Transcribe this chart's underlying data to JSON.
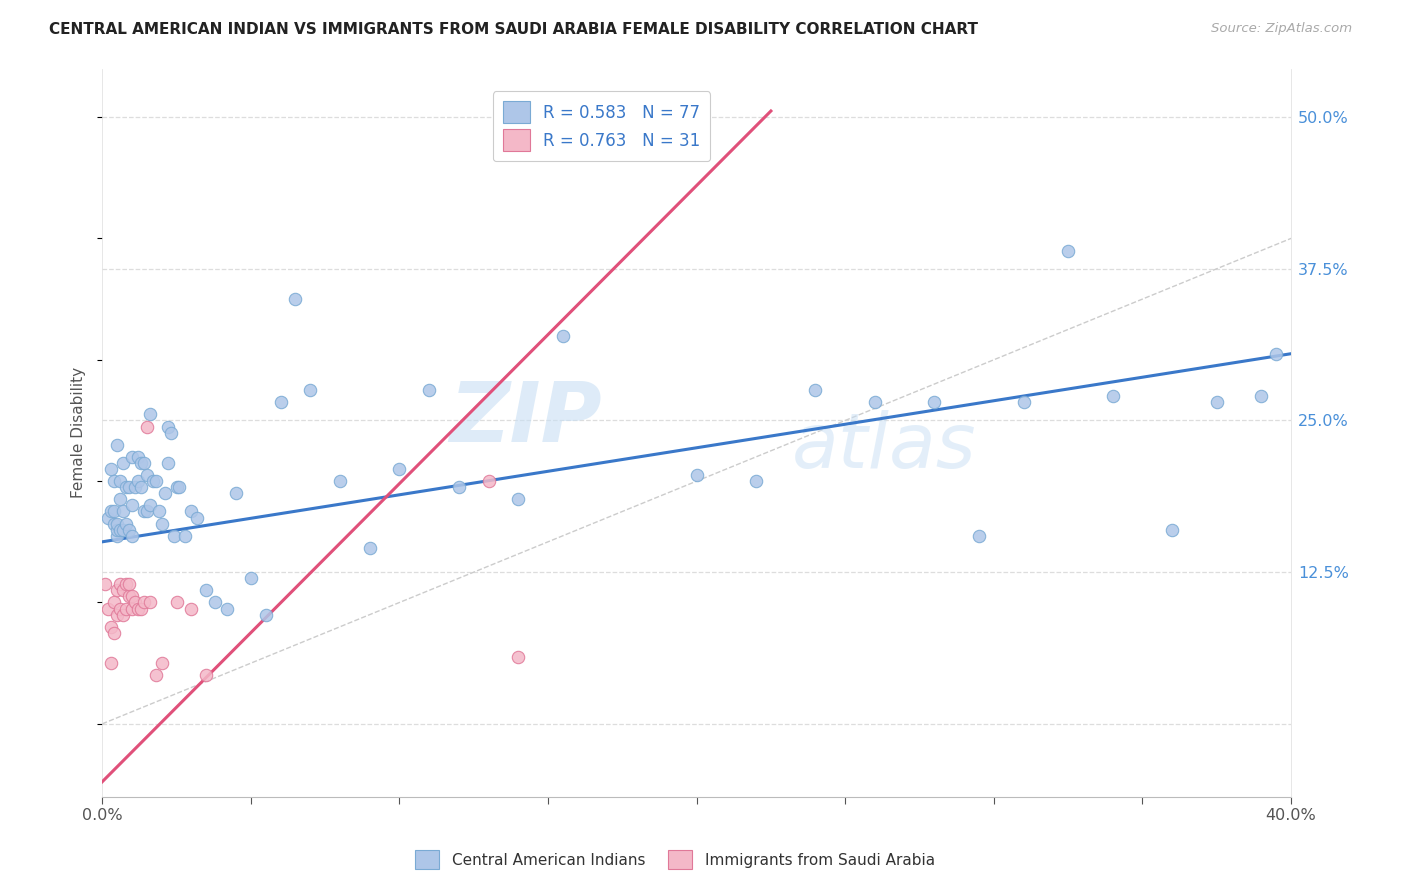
{
  "title": "CENTRAL AMERICAN INDIAN VS IMMIGRANTS FROM SAUDI ARABIA FEMALE DISABILITY CORRELATION CHART",
  "source": "Source: ZipAtlas.com",
  "ylabel": "Female Disability",
  "xlim": [
    0.0,
    0.4
  ],
  "ylim": [
    -0.06,
    0.54
  ],
  "yticks": [
    0.0,
    0.125,
    0.25,
    0.375,
    0.5
  ],
  "ytick_labels": [
    "",
    "12.5%",
    "25.0%",
    "37.5%",
    "50.0%"
  ],
  "xticks": [
    0.0,
    0.05,
    0.1,
    0.15,
    0.2,
    0.25,
    0.3,
    0.35,
    0.4
  ],
  "xtick_labels": [
    "0.0%",
    "",
    "",
    "",
    "",
    "",
    "",
    "",
    "40.0%"
  ],
  "series1_color": "#aec6e8",
  "series1_edge": "#7aaad4",
  "series2_color": "#f4b8c8",
  "series2_edge": "#e07898",
  "line1_color": "#3a78c9",
  "line2_color": "#e0507a",
  "ref_line_color": "#cccccc",
  "legend_R1": "R = 0.583",
  "legend_N1": "N = 77",
  "legend_R2": "R = 0.763",
  "legend_N2": "N = 31",
  "label1": "Central American Indians",
  "label2": "Immigrants from Saudi Arabia",
  "watermark_zip": "ZIP",
  "watermark_atlas": "atlas",
  "blue_points_x": [
    0.002,
    0.003,
    0.003,
    0.004,
    0.004,
    0.004,
    0.005,
    0.005,
    0.005,
    0.005,
    0.006,
    0.006,
    0.006,
    0.007,
    0.007,
    0.007,
    0.008,
    0.008,
    0.009,
    0.009,
    0.01,
    0.01,
    0.01,
    0.011,
    0.012,
    0.012,
    0.013,
    0.013,
    0.014,
    0.014,
    0.015,
    0.015,
    0.016,
    0.016,
    0.017,
    0.018,
    0.019,
    0.02,
    0.021,
    0.022,
    0.022,
    0.023,
    0.024,
    0.025,
    0.026,
    0.028,
    0.03,
    0.032,
    0.035,
    0.038,
    0.042,
    0.045,
    0.05,
    0.055,
    0.06,
    0.065,
    0.07,
    0.08,
    0.09,
    0.1,
    0.11,
    0.12,
    0.14,
    0.155,
    0.2,
    0.22,
    0.24,
    0.26,
    0.28,
    0.295,
    0.31,
    0.325,
    0.34,
    0.36,
    0.375,
    0.39,
    0.395
  ],
  "blue_points_y": [
    0.17,
    0.175,
    0.21,
    0.165,
    0.175,
    0.2,
    0.155,
    0.16,
    0.165,
    0.23,
    0.16,
    0.185,
    0.2,
    0.16,
    0.175,
    0.215,
    0.165,
    0.195,
    0.16,
    0.195,
    0.155,
    0.18,
    0.22,
    0.195,
    0.2,
    0.22,
    0.195,
    0.215,
    0.175,
    0.215,
    0.175,
    0.205,
    0.18,
    0.255,
    0.2,
    0.2,
    0.175,
    0.165,
    0.19,
    0.215,
    0.245,
    0.24,
    0.155,
    0.195,
    0.195,
    0.155,
    0.175,
    0.17,
    0.11,
    0.1,
    0.095,
    0.19,
    0.12,
    0.09,
    0.265,
    0.35,
    0.275,
    0.2,
    0.145,
    0.21,
    0.275,
    0.195,
    0.185,
    0.32,
    0.205,
    0.2,
    0.275,
    0.265,
    0.265,
    0.155,
    0.265,
    0.39,
    0.27,
    0.16,
    0.265,
    0.27,
    0.305
  ],
  "pink_points_x": [
    0.001,
    0.002,
    0.003,
    0.003,
    0.004,
    0.004,
    0.005,
    0.005,
    0.006,
    0.006,
    0.007,
    0.007,
    0.008,
    0.008,
    0.009,
    0.009,
    0.01,
    0.01,
    0.011,
    0.012,
    0.013,
    0.014,
    0.015,
    0.016,
    0.018,
    0.02,
    0.025,
    0.03,
    0.035,
    0.13,
    0.14
  ],
  "pink_points_y": [
    0.115,
    0.095,
    0.08,
    0.05,
    0.075,
    0.1,
    0.09,
    0.11,
    0.095,
    0.115,
    0.09,
    0.11,
    0.095,
    0.115,
    0.105,
    0.115,
    0.095,
    0.105,
    0.1,
    0.095,
    0.095,
    0.1,
    0.245,
    0.1,
    0.04,
    0.05,
    0.1,
    0.095,
    0.04,
    0.2,
    0.055
  ],
  "line1_x": [
    0.0,
    0.4
  ],
  "line1_y": [
    0.15,
    0.305
  ],
  "line2_x": [
    -0.005,
    0.225
  ],
  "line2_y": [
    -0.06,
    0.505
  ],
  "ref_line_x": [
    0.0,
    0.52
  ],
  "ref_line_y": [
    0.0,
    0.52
  ]
}
